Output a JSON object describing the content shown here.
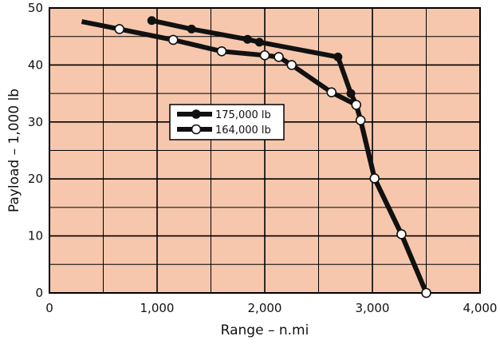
{
  "colors": {
    "plot_background": "#f6c7ad",
    "grid": "#000000",
    "series_line": "#111111",
    "open_marker_fill": "#ffffff"
  },
  "chart_data": {
    "type": "line",
    "xlabel": "Range – n.mi",
    "ylabel": "Payload – 1,000 lb",
    "xlim": [
      0,
      4000
    ],
    "ylim": [
      0,
      50
    ],
    "x_ticks": [
      0,
      1000,
      2000,
      3000,
      4000
    ],
    "x_tick_labels": [
      "0",
      "1,000",
      "2,000",
      "3,000",
      "4,000"
    ],
    "y_ticks": [
      0,
      10,
      20,
      30,
      40,
      50
    ],
    "y_tick_labels": [
      "0",
      "10",
      "20",
      "30",
      "40",
      "50"
    ],
    "minor_x_step": 500,
    "minor_y_step": 5,
    "grid": true,
    "legend_position": "center-left",
    "series": [
      {
        "name": "175,000 lb",
        "marker": "filled-circle",
        "line_start": [
          950,
          47.8
        ],
        "points": [
          {
            "x": 950,
            "y": 47.8
          },
          {
            "x": 1320,
            "y": 46.3
          },
          {
            "x": 1840,
            "y": 44.5
          },
          {
            "x": 1950,
            "y": 44.0
          },
          {
            "x": 2680,
            "y": 41.4
          },
          {
            "x": 2800,
            "y": 35.0
          },
          {
            "x": 2850,
            "y": 33.0
          },
          {
            "x": 2890,
            "y": 30.3
          },
          {
            "x": 3020,
            "y": 20.1
          },
          {
            "x": 3270,
            "y": 10.3
          },
          {
            "x": 3500,
            "y": 0
          }
        ]
      },
      {
        "name": "164,000 lb",
        "marker": "open-circle",
        "line_start": [
          300,
          47.6
        ],
        "points": [
          {
            "x": 650,
            "y": 46.3
          },
          {
            "x": 1150,
            "y": 44.4
          },
          {
            "x": 1600,
            "y": 42.4
          },
          {
            "x": 2000,
            "y": 41.7
          },
          {
            "x": 2130,
            "y": 41.4
          },
          {
            "x": 2250,
            "y": 40.0
          },
          {
            "x": 2620,
            "y": 35.2
          },
          {
            "x": 2850,
            "y": 33.0
          },
          {
            "x": 2890,
            "y": 30.3
          },
          {
            "x": 3020,
            "y": 20.1
          },
          {
            "x": 3270,
            "y": 10.3
          },
          {
            "x": 3500,
            "y": 0
          }
        ]
      }
    ]
  }
}
